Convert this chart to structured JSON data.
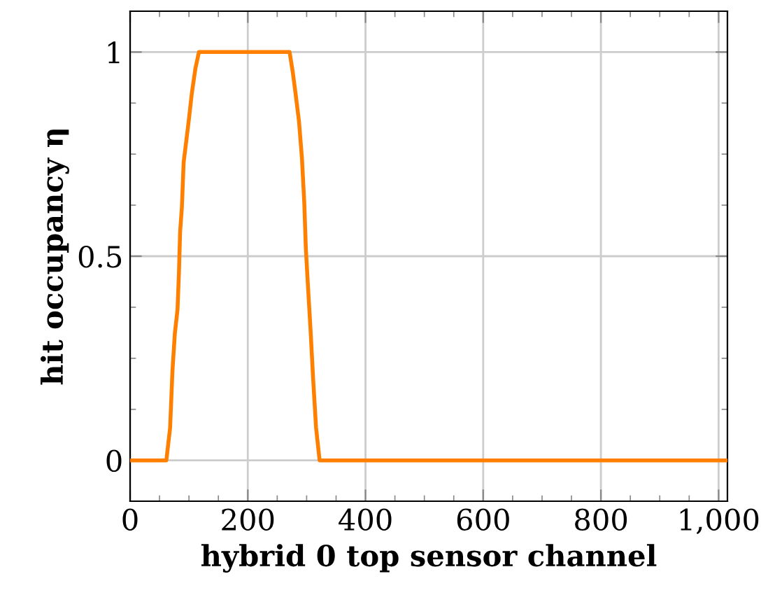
{
  "chart_data": {
    "type": "line",
    "xlabel": "hybrid 0 top sensor channel",
    "ylabel": "hit occupancy η",
    "x": [
      0,
      61.6,
      68,
      72,
      76,
      80.6,
      83,
      85,
      88,
      91,
      99.5,
      105,
      111,
      117,
      271,
      276.5,
      281,
      287,
      292,
      296,
      298.6,
      302.5,
      306.6,
      311,
      316,
      322,
      1015
    ],
    "series": [
      {
        "color": "#ff8000",
        "values": [
          0,
          0,
          0.08,
          0.22,
          0.31,
          0.37,
          0.46,
          0.56,
          0.62,
          0.73,
          0.83,
          0.9,
          0.96,
          1,
          1,
          0.95,
          0.9,
          0.83,
          0.74,
          0.63,
          0.52,
          0.42,
          0.32,
          0.2,
          0.08,
          0,
          0
        ]
      }
    ],
    "xlim": [
      0,
      1015
    ],
    "ylim": [
      -0.1,
      1.1
    ],
    "xticks": [
      0,
      200,
      400,
      600,
      800,
      {
        "value": 1000,
        "label": "1,000"
      }
    ],
    "yticks": [
      0,
      0.5,
      1
    ],
    "grid": true,
    "marker": "none",
    "line_style": "solid",
    "legend": false
  }
}
